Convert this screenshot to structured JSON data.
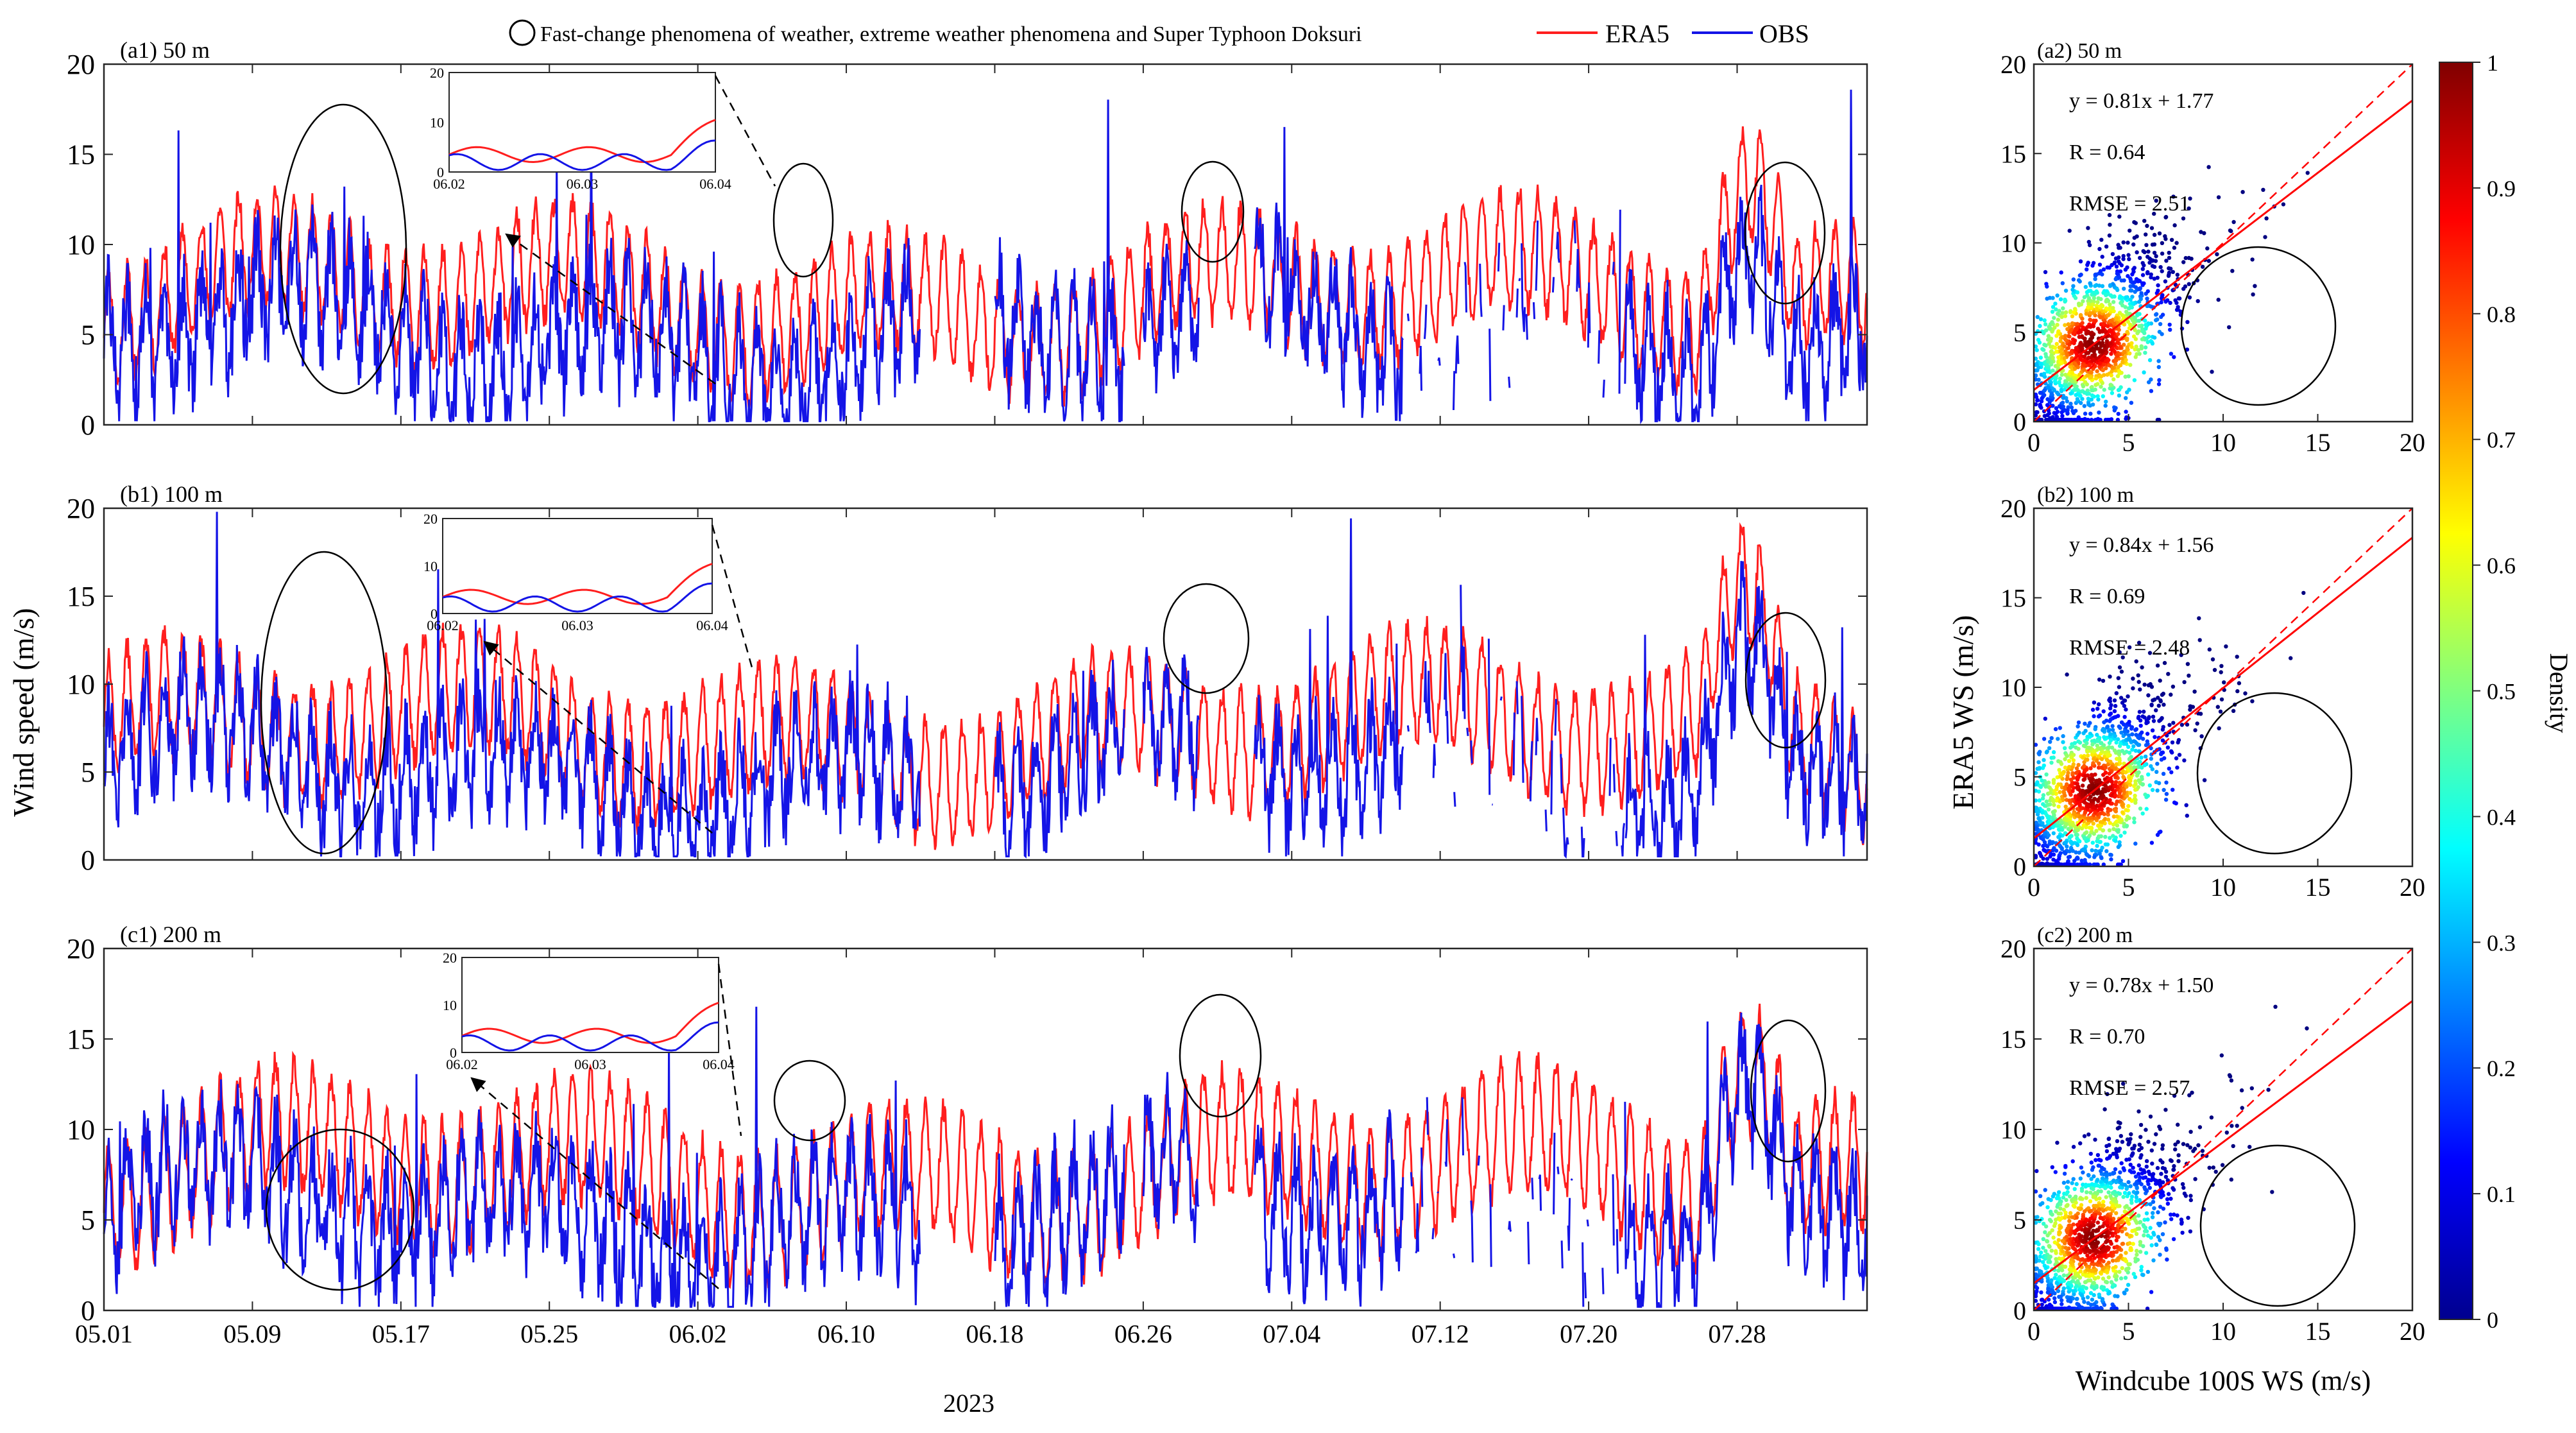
{
  "legend": {
    "circle_note": "Fast-change phenomena of weather, extreme weather phenomena and Super Typhoon Doksuri",
    "era5": "ERA5",
    "obs": "OBS"
  },
  "colors": {
    "era5": "#ff1e1e",
    "obs": "#1414e6",
    "fit": "#ff0000",
    "axis": "#262626",
    "annotation": "#000000"
  },
  "time_axis": {
    "xlabel": "2023",
    "ylabel": "Wind speed (m/s)",
    "tick_labels": [
      "05.01",
      "05.09",
      "05.17",
      "05.25",
      "06.02",
      "06.10",
      "06.18",
      "06.26",
      "07.04",
      "07.12",
      "07.20",
      "07.28"
    ],
    "yticks": [
      "0",
      "5",
      "10",
      "15",
      "20"
    ],
    "inset_ticks": [
      "06.02",
      "06.03",
      "06.04"
    ],
    "inset_yticks": [
      "0",
      "10",
      "20"
    ]
  },
  "scatter_axis": {
    "xlabel": "Windcube 100S WS (m/s)",
    "ylabel": "ERA5 WS (m/s)",
    "ticks": [
      "0",
      "5",
      "10",
      "15",
      "20"
    ]
  },
  "colorbar": {
    "label": "Density",
    "ticks": [
      "0",
      "0.1",
      "0.2",
      "0.3",
      "0.4",
      "0.5",
      "0.6",
      "0.7",
      "0.8",
      "0.9",
      "1"
    ]
  },
  "chart_data": [
    {
      "type": "line",
      "id": "a1",
      "title": "(a1) 50 m",
      "x_range_days": [
        0,
        95
      ],
      "ylim": [
        0,
        20
      ],
      "ylabel": "Wind speed (m/s)",
      "series": [
        {
          "name": "ERA5",
          "base": 7.0,
          "amp": 3.4,
          "seed": 11
        },
        {
          "name": "OBS",
          "base": 5.0,
          "amp": 3.0,
          "seed": 29
        }
      ],
      "inset": {
        "x_range": [
          "06.02",
          "06.04"
        ],
        "ylim": [
          0,
          20
        ]
      },
      "highlight_circles": [
        "05.09–05.17",
        "06.05",
        "06.27",
        "07.28"
      ]
    },
    {
      "type": "line",
      "id": "b1",
      "title": "(b1) 100 m",
      "x_range_days": [
        0,
        95
      ],
      "ylim": [
        0,
        20
      ],
      "ylabel": "Wind speed (m/s)",
      "series": [
        {
          "name": "ERA5",
          "base": 7.2,
          "amp": 3.6,
          "seed": 13
        },
        {
          "name": "OBS",
          "base": 5.2,
          "amp": 3.0,
          "seed": 31
        }
      ],
      "inset": {
        "x_range": [
          "06.02",
          "06.04"
        ],
        "ylim": [
          0,
          20
        ]
      },
      "highlight_circles": [
        "05.08–05.16",
        "06.27",
        "07.28"
      ]
    },
    {
      "type": "line",
      "id": "c1",
      "title": "(c1) 200 m",
      "x_range_days": [
        0,
        95
      ],
      "ylim": [
        0,
        20
      ],
      "ylabel": "Wind speed (m/s)",
      "series": [
        {
          "name": "ERA5",
          "base": 7.5,
          "amp": 3.8,
          "seed": 17
        },
        {
          "name": "OBS",
          "base": 5.5,
          "amp": 3.2,
          "seed": 37
        }
      ],
      "inset": {
        "x_range": [
          "06.02",
          "06.04"
        ],
        "ylim": [
          0,
          20
        ]
      },
      "highlight_circles": [
        "05.09–05.17",
        "06.05",
        "06.27",
        "07.28"
      ]
    },
    {
      "type": "scatter",
      "id": "a2",
      "title": "(a2) 50 m",
      "xlim": [
        0,
        20
      ],
      "ylim": [
        0,
        20
      ],
      "fit": {
        "slope": 0.81,
        "intercept": 1.77
      },
      "equation": "y = 0.81x + 1.77",
      "r_text": "R = 0.64",
      "rmse_text": "RMSE = 2.51",
      "highlight_circle": {
        "x": 12,
        "y": 5,
        "r": 4.5
      }
    },
    {
      "type": "scatter",
      "id": "b2",
      "title": "(b2) 100 m",
      "xlim": [
        0,
        20
      ],
      "ylim": [
        0,
        20
      ],
      "fit": {
        "slope": 0.84,
        "intercept": 1.56
      },
      "equation": "y = 0.84x + 1.56",
      "r_text": "R = 0.69",
      "rmse_text": "RMSE = 2.48",
      "highlight_circle": {
        "x": 12.5,
        "y": 5.5,
        "r": 4.5
      }
    },
    {
      "type": "scatter",
      "id": "c2",
      "title": "(c2) 200 m",
      "xlim": [
        0,
        20
      ],
      "ylim": [
        0,
        20
      ],
      "fit": {
        "slope": 0.78,
        "intercept": 1.5
      },
      "equation": "y = 0.78x + 1.50",
      "r_text": "R = 0.70",
      "rmse_text": "RMSE = 2.57",
      "highlight_circle": {
        "x": 13.3,
        "y": 4.8,
        "r": 4.5
      }
    }
  ]
}
